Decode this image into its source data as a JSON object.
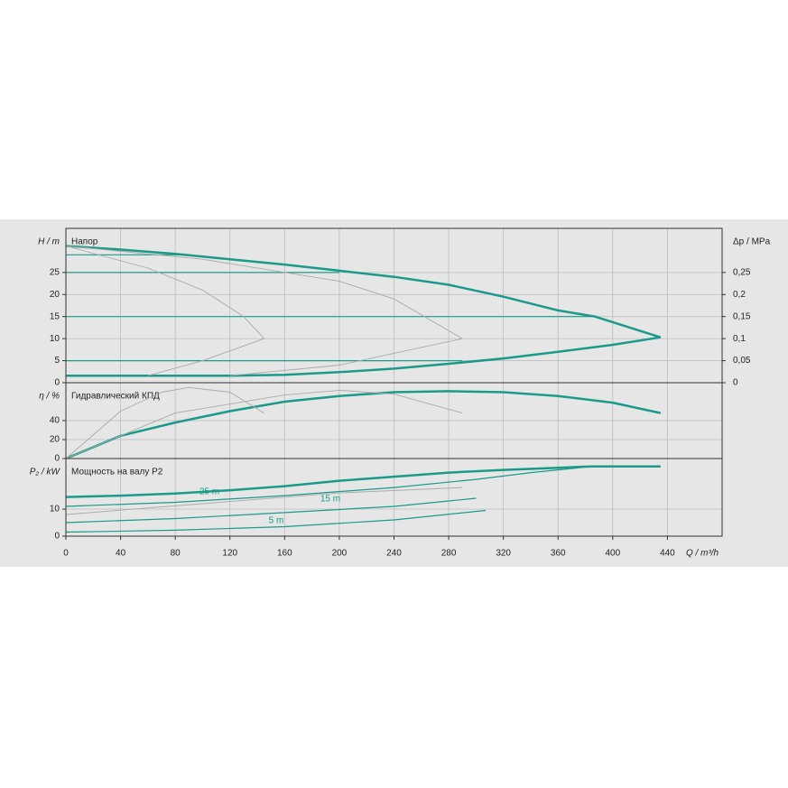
{
  "chart_data": [
    {
      "type": "line",
      "title": "Напор",
      "ylabel": "H / m",
      "y2label": "Δp / MPa",
      "xlim": [
        0,
        480
      ],
      "ylim": [
        0,
        35
      ],
      "yticks": [
        0,
        5,
        10,
        15,
        20,
        25
      ],
      "y2lim": [
        0,
        0.35
      ],
      "y2ticks": [
        0,
        {
          "value": 0.05,
          "label": "0,05"
        },
        {
          "value": 0.1,
          "label": "0,1"
        },
        {
          "value": 0.15,
          "label": "0,15"
        },
        {
          "value": 0.2,
          "label": "0,2"
        },
        {
          "value": 0.25,
          "label": "0,25"
        }
      ],
      "grid": true,
      "series": [
        {
          "color": "#1a9a8a",
          "width": 2.5,
          "x": [
            0,
            40,
            80,
            120,
            160,
            200,
            240,
            280,
            320,
            360,
            387,
            435
          ],
          "values": [
            31,
            30.2,
            29.2,
            28,
            26.8,
            25.4,
            24,
            22.2,
            19.5,
            16.4,
            15,
            10.3
          ]
        },
        {
          "color": "#1a9a8a",
          "width": 2.5,
          "x": [
            0,
            120,
            160,
            200,
            240,
            280,
            320,
            360,
            400,
            435
          ],
          "values": [
            1.6,
            1.6,
            1.8,
            2.4,
            3.2,
            4.3,
            5.5,
            7,
            8.6,
            10.3
          ]
        },
        {
          "color": "#1a9a8a",
          "width": 1.2,
          "x": [
            0,
            90
          ],
          "values": [
            29,
            29
          ]
        },
        {
          "color": "#1a9a8a",
          "width": 1.2,
          "x": [
            0,
            200
          ],
          "values": [
            25,
            25
          ]
        },
        {
          "color": "#1a9a8a",
          "width": 1.2,
          "x": [
            0,
            387
          ],
          "values": [
            15,
            15
          ]
        },
        {
          "color": "#1a9a8a",
          "width": 1.2,
          "x": [
            0,
            290
          ],
          "values": [
            5,
            5
          ]
        },
        {
          "color": "#aaaaaa",
          "width": 0.9,
          "x": [
            0,
            60,
            100,
            130,
            145,
            100,
            60
          ],
          "values": [
            31,
            26,
            21,
            15,
            10,
            5,
            1.6
          ]
        },
        {
          "color": "#aaaaaa",
          "width": 0.9,
          "x": [
            0,
            100,
            200,
            240,
            290,
            200,
            120
          ],
          "values": [
            31,
            28,
            23,
            19,
            10,
            4,
            1.6
          ]
        }
      ]
    },
    {
      "type": "line",
      "title": "Гидравлический КПД",
      "ylabel": "η / %",
      "xlim": [
        0,
        480
      ],
      "ylim": [
        0,
        80
      ],
      "yticks": [
        0,
        20,
        40
      ],
      "grid": true,
      "series": [
        {
          "color": "#1a9a8a",
          "width": 2.5,
          "x": [
            0,
            40,
            80,
            120,
            160,
            200,
            240,
            280,
            320,
            360,
            400,
            435
          ],
          "values": [
            0,
            24,
            38,
            50,
            60,
            66,
            70,
            71,
            70,
            66,
            59,
            48
          ]
        },
        {
          "color": "#aaaaaa",
          "width": 0.9,
          "x": [
            0,
            40,
            70,
            90,
            120,
            145
          ],
          "values": [
            0,
            50,
            70,
            75,
            70,
            48
          ]
        },
        {
          "color": "#aaaaaa",
          "width": 0.9,
          "x": [
            0,
            80,
            160,
            200,
            240,
            290
          ],
          "values": [
            0,
            48,
            67,
            72,
            68,
            48
          ]
        }
      ]
    },
    {
      "type": "line",
      "title": "Мощность на валу P2",
      "ylabel": "P₂ / kW",
      "xlabel": "Q / m³/h",
      "xlim": [
        0,
        480
      ],
      "xticks": [
        0,
        40,
        80,
        120,
        160,
        200,
        240,
        280,
        320,
        360,
        400,
        440
      ],
      "ylim": [
        0,
        28.7
      ],
      "yticks": [
        0,
        10
      ],
      "grid": true,
      "annotations": [
        "25 m",
        "15 m",
        "5 m"
      ],
      "series": [
        {
          "color": "#1a9a8a",
          "width": 2.5,
          "x": [
            0,
            40,
            80,
            120,
            160,
            200,
            240,
            280,
            320,
            360,
            385,
            435
          ],
          "values": [
            14.5,
            15,
            15.8,
            17,
            18.5,
            20.5,
            22,
            23.5,
            24.5,
            25.3,
            25.8,
            25.8
          ]
        },
        {
          "color": "#1a9a8a",
          "width": 1.2,
          "x": [
            0,
            80,
            160,
            240,
            300,
            340,
            385
          ],
          "values": [
            11,
            12.5,
            15,
            18,
            21,
            23.5,
            25.8
          ]
        },
        {
          "color": "#1a9a8a",
          "width": 1.2,
          "x": [
            0,
            80,
            160,
            240,
            280,
            300
          ],
          "values": [
            5,
            6.5,
            8.7,
            11,
            13,
            14
          ]
        },
        {
          "color": "#1a9a8a",
          "width": 1.2,
          "x": [
            0,
            80,
            160,
            240,
            307
          ],
          "values": [
            1.5,
            2.2,
            3.5,
            6,
            9.5
          ]
        },
        {
          "color": "#aaaaaa",
          "width": 0.9,
          "x": [
            0,
            100,
            200,
            290
          ],
          "values": [
            8,
            12,
            16,
            18
          ]
        }
      ]
    }
  ]
}
